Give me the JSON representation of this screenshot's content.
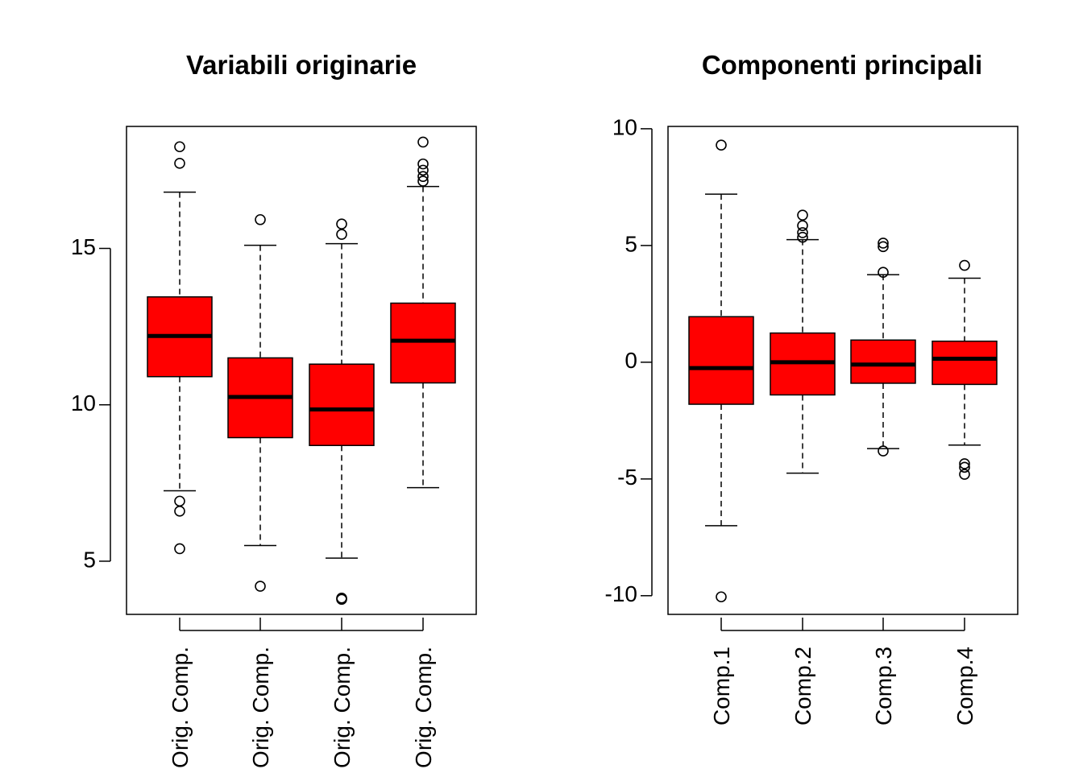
{
  "colors": {
    "box_fill": "#ff0000",
    "line": "#000000",
    "background": "#ffffff"
  },
  "chart_data": [
    {
      "type": "boxplot",
      "title": "Variabili originarie",
      "xlabel": "",
      "ylabel": "",
      "ylim": [
        3.3,
        18.9
      ],
      "yticks": [
        5,
        10,
        15
      ],
      "ytick_labels": [
        "5",
        "10",
        "15"
      ],
      "categories": [
        "Orig. Comp.",
        "Orig. Comp.",
        "Orig. Comp.",
        "Orig. Comp."
      ],
      "boxes": [
        {
          "whisker_low": 7.25,
          "q1": 10.9,
          "median": 12.2,
          "q3": 13.45,
          "whisker_high": 16.8,
          "outliers": [
            18.25,
            17.72,
            6.92,
            6.6,
            5.4
          ]
        },
        {
          "whisker_low": 5.5,
          "q1": 8.95,
          "median": 10.25,
          "q3": 11.5,
          "whisker_high": 15.1,
          "outliers": [
            15.92,
            4.2
          ]
        },
        {
          "whisker_low": 5.1,
          "q1": 8.7,
          "median": 9.85,
          "q3": 11.3,
          "whisker_high": 15.15,
          "outliers": [
            15.78,
            15.45,
            3.82,
            3.78
          ]
        },
        {
          "whisker_low": 7.35,
          "q1": 10.7,
          "median": 12.05,
          "q3": 13.25,
          "whisker_high": 16.98,
          "outliers": [
            18.4,
            17.7,
            17.5,
            17.3,
            17.15
          ]
        }
      ]
    },
    {
      "type": "boxplot",
      "title": "Componenti principali",
      "xlabel": "",
      "ylabel": "",
      "ylim": [
        -10.8,
        10.1
      ],
      "yticks": [
        -10,
        -5,
        0,
        5,
        10
      ],
      "ytick_labels": [
        "-10",
        "-5",
        "0",
        "5",
        "10"
      ],
      "categories": [
        "Comp.1",
        "Comp.2",
        "Comp.3",
        "Comp.4"
      ],
      "boxes": [
        {
          "whisker_low": -7.0,
          "q1": -1.8,
          "median": -0.25,
          "q3": 1.95,
          "whisker_high": 7.2,
          "outliers": [
            9.3,
            -10.05
          ]
        },
        {
          "whisker_low": -4.75,
          "q1": -1.4,
          "median": 0.0,
          "q3": 1.25,
          "whisker_high": 5.25,
          "outliers": [
            6.3,
            5.85,
            5.55,
            5.35
          ]
        },
        {
          "whisker_low": -3.7,
          "q1": -0.9,
          "median": -0.1,
          "q3": 0.95,
          "whisker_high": 3.75,
          "outliers": [
            5.1,
            4.95,
            3.85,
            -3.8
          ]
        },
        {
          "whisker_low": -3.55,
          "q1": -0.95,
          "median": 0.15,
          "q3": 0.9,
          "whisker_high": 3.6,
          "outliers": [
            4.15,
            -4.35,
            -4.5,
            -4.8
          ]
        }
      ]
    }
  ]
}
